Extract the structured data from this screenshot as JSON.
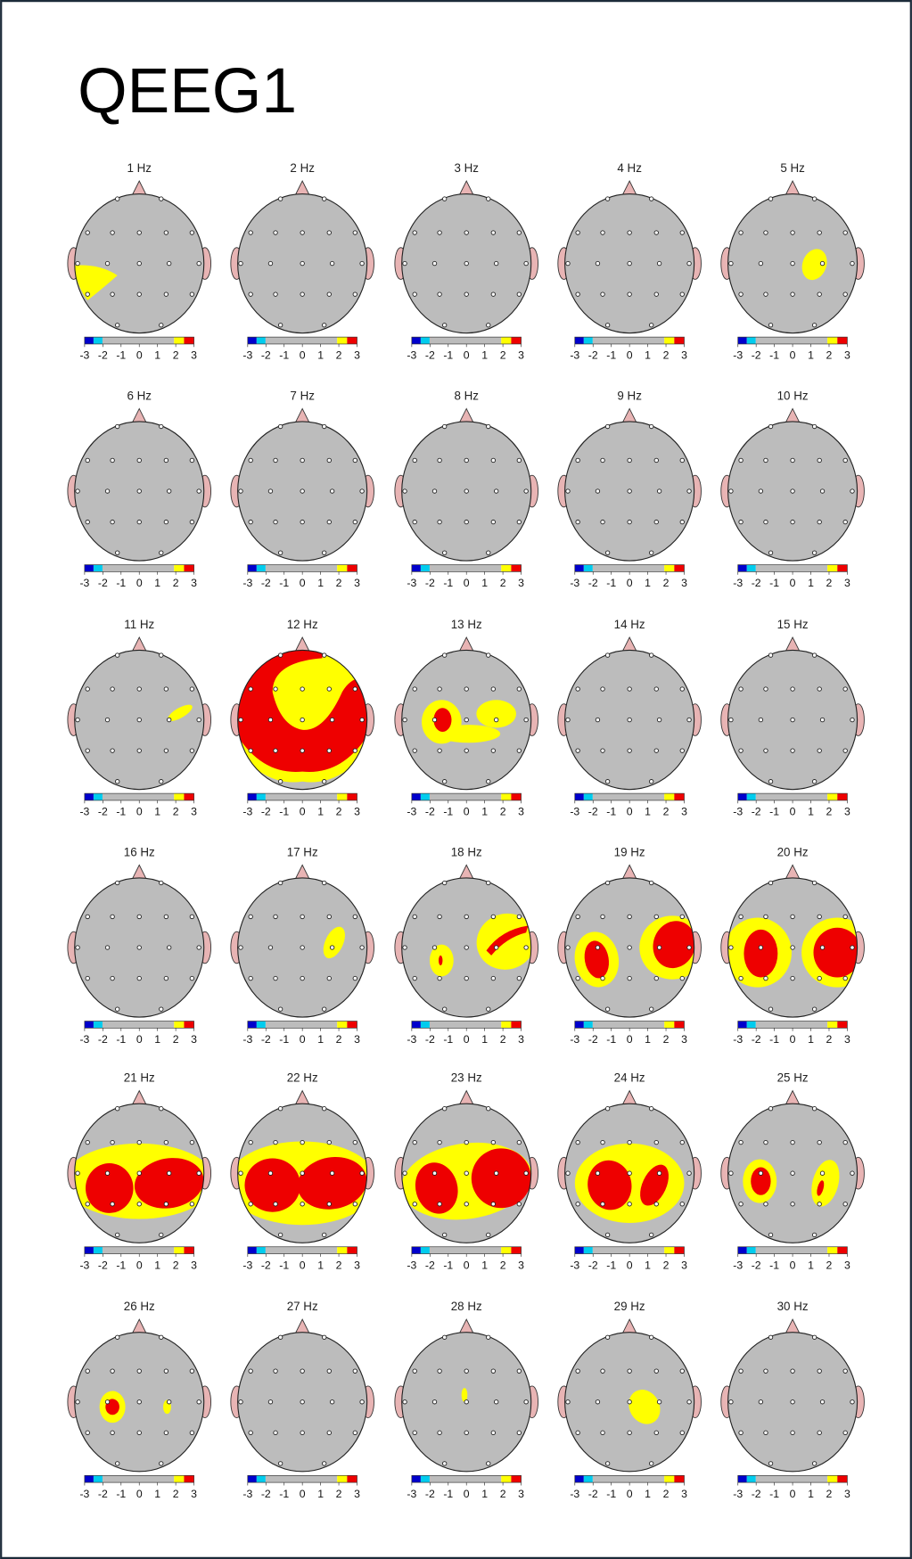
{
  "title": "QEEG1",
  "maps": [
    "1 Hz",
    "2 Hz",
    "3 Hz",
    "4 Hz",
    "5 Hz",
    "6 Hz",
    "7 Hz",
    "8 Hz",
    "9 Hz",
    "10 Hz",
    "11 Hz",
    "12 Hz",
    "13 Hz",
    "14 Hz",
    "15 Hz",
    "16 Hz",
    "17 Hz",
    "18 Hz",
    "19 Hz",
    "20 Hz",
    "21 Hz",
    "22 Hz",
    "23 Hz",
    "24 Hz",
    "25 Hz",
    "26 Hz",
    "27 Hz",
    "28 Hz",
    "29 Hz",
    "30 Hz"
  ],
  "colorbar_ticks": [
    -3,
    -2,
    -1,
    0,
    1,
    2,
    3
  ]
}
